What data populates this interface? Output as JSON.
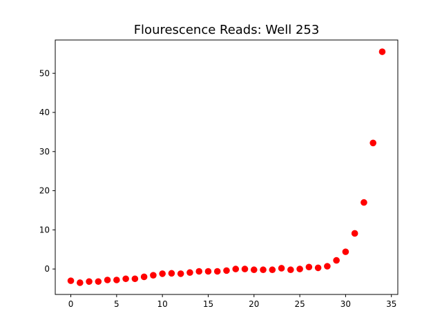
{
  "chart_data": {
    "type": "scatter",
    "title": "Flourescence Reads: Well 253",
    "xlabel": "",
    "ylabel": "",
    "xlim": [
      -1.7,
      35.7
    ],
    "ylim": [
      -6.5,
      58.5
    ],
    "xticks": [
      0,
      5,
      10,
      15,
      20,
      25,
      30,
      35
    ],
    "yticks": [
      0,
      10,
      20,
      30,
      40,
      50
    ],
    "grid": false,
    "marker_color": "#ff0000",
    "series": [
      {
        "x": [
          0,
          1,
          2,
          3,
          4,
          5,
          6,
          7,
          8,
          9,
          10,
          11,
          12,
          13,
          14,
          15,
          16,
          17,
          18,
          19,
          20,
          21,
          22,
          23,
          24,
          25,
          26,
          27,
          28,
          29,
          30,
          31,
          32,
          33,
          34
        ],
        "y": [
          -3.0,
          -3.5,
          -3.2,
          -3.2,
          -2.8,
          -2.8,
          -2.5,
          -2.5,
          -2.0,
          -1.6,
          -1.2,
          -1.1,
          -1.2,
          -0.9,
          -0.6,
          -0.6,
          -0.6,
          -0.4,
          0.0,
          0.0,
          -0.2,
          -0.2,
          -0.2,
          0.2,
          -0.2,
          0.0,
          0.5,
          0.3,
          0.7,
          2.2,
          4.4,
          9.1,
          17.0,
          32.2,
          55.5
        ]
      }
    ]
  }
}
